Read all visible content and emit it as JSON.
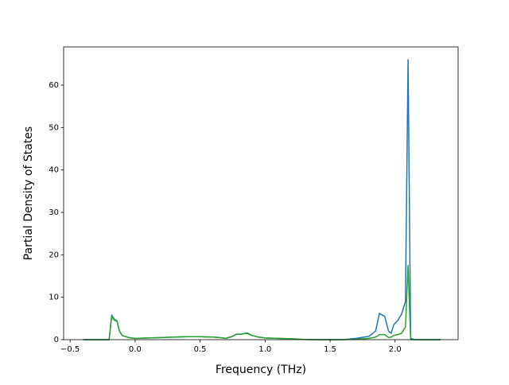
{
  "chart_data": {
    "type": "line",
    "xlabel": "Frequency (THz)",
    "ylabel": "Partial Density of States",
    "x": [
      -0.4,
      -0.2,
      -0.18,
      -0.16,
      -0.14,
      -0.12,
      -0.1,
      -0.05,
      0,
      0.1,
      0.2,
      0.3,
      0.4,
      0.5,
      0.6,
      0.65,
      0.7,
      0.75,
      0.78,
      0.82,
      0.86,
      0.9,
      0.95,
      1.0,
      1.1,
      1.2,
      1.3,
      1.4,
      1.6,
      1.7,
      1.8,
      1.85,
      1.88,
      1.92,
      1.95,
      1.97,
      1.99,
      2.02,
      2.05,
      2.08,
      2.1,
      2.12,
      2.15,
      2.35
    ],
    "series": [
      {
        "color": "#1f77b4",
        "values": [
          0,
          0,
          5.8,
          4.8,
          4.5,
          2,
          1,
          0.5,
          0.3,
          0.4,
          0.5,
          0.6,
          0.7,
          0.7,
          0.6,
          0.5,
          0.3,
          0.8,
          1.3,
          1.3,
          1.6,
          1,
          0.6,
          0.4,
          0.3,
          0.2,
          0.05,
          0,
          0,
          0.3,
          0.8,
          2,
          6.2,
          5.5,
          2,
          1.5,
          3.5,
          4.5,
          6,
          9,
          66,
          0.3,
          0,
          0
        ]
      },
      {
        "color": "#2ca02c",
        "values": [
          0,
          0,
          5.5,
          4.6,
          4.3,
          2,
          1,
          0.5,
          0.3,
          0.4,
          0.5,
          0.6,
          0.7,
          0.7,
          0.6,
          0.5,
          0.3,
          0.8,
          1.3,
          1.3,
          1.5,
          1,
          0.6,
          0.4,
          0.3,
          0.2,
          0.05,
          0,
          0,
          0.1,
          0.3,
          0.6,
          1.2,
          1.2,
          0.5,
          0.6,
          1,
          1.2,
          1.5,
          3,
          17.5,
          0,
          0,
          0
        ]
      }
    ],
    "xlim": [
      -0.55,
      2.485
    ],
    "ylim": [
      0,
      69
    ],
    "xticks": [
      {
        "value": -0.5,
        "label": "−0.5"
      },
      {
        "value": 0,
        "label": "0.0"
      },
      {
        "value": 0.5,
        "label": "0.5"
      },
      {
        "value": 1,
        "label": "1.0"
      },
      {
        "value": 1.5,
        "label": "1.5"
      },
      {
        "value": 2,
        "label": "2.0"
      }
    ],
    "yticks": [
      0,
      10,
      20,
      30,
      40,
      50,
      60
    ]
  }
}
